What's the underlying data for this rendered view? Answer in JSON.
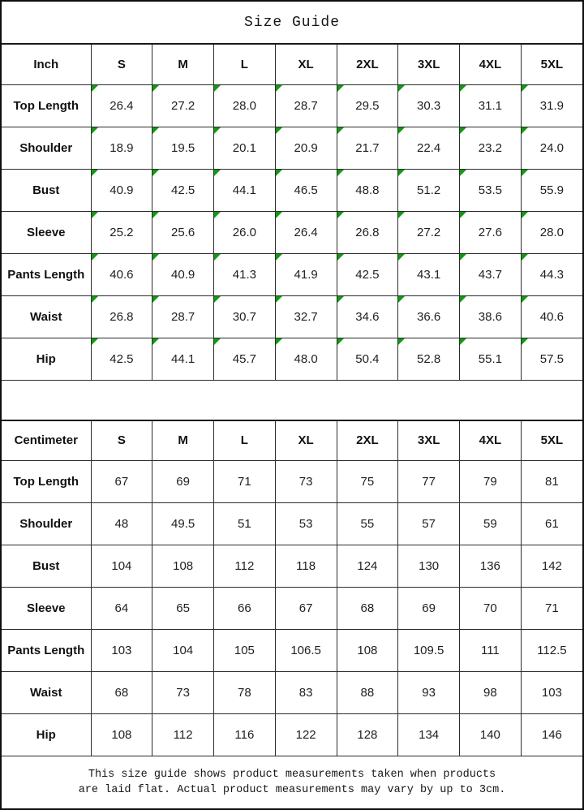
{
  "title": "Size Guide",
  "colors": {
    "indicator_green": "#119a11",
    "border": "#2c2c2c",
    "outer_border": "#0e0e0e",
    "background": "#ffffff"
  },
  "tables": [
    {
      "unit_label": "Inch",
      "columns": [
        "S",
        "M",
        "L",
        "XL",
        "2XL",
        "3XL",
        "4XL",
        "5XL"
      ],
      "has_corner_flags": true,
      "rows": [
        {
          "label": "Top Length",
          "values": [
            "26.4",
            "27.2",
            "28.0",
            "28.7",
            "29.5",
            "30.3",
            "31.1",
            "31.9"
          ]
        },
        {
          "label": "Shoulder",
          "values": [
            "18.9",
            "19.5",
            "20.1",
            "20.9",
            "21.7",
            "22.4",
            "23.2",
            "24.0"
          ]
        },
        {
          "label": "Bust",
          "values": [
            "40.9",
            "42.5",
            "44.1",
            "46.5",
            "48.8",
            "51.2",
            "53.5",
            "55.9"
          ]
        },
        {
          "label": "Sleeve",
          "values": [
            "25.2",
            "25.6",
            "26.0",
            "26.4",
            "26.8",
            "27.2",
            "27.6",
            "28.0"
          ]
        },
        {
          "label": "Pants Length",
          "values": [
            "40.6",
            "40.9",
            "41.3",
            "41.9",
            "42.5",
            "43.1",
            "43.7",
            "44.3"
          ]
        },
        {
          "label": "Waist",
          "values": [
            "26.8",
            "28.7",
            "30.7",
            "32.7",
            "34.6",
            "36.6",
            "38.6",
            "40.6"
          ]
        },
        {
          "label": "Hip",
          "values": [
            "42.5",
            "44.1",
            "45.7",
            "48.0",
            "50.4",
            "52.8",
            "55.1",
            "57.5"
          ]
        }
      ]
    },
    {
      "unit_label": "Centimeter",
      "columns": [
        "S",
        "M",
        "L",
        "XL",
        "2XL",
        "3XL",
        "4XL",
        "5XL"
      ],
      "has_corner_flags": false,
      "rows": [
        {
          "label": "Top Length",
          "values": [
            "67",
            "69",
            "71",
            "73",
            "75",
            "77",
            "79",
            "81"
          ]
        },
        {
          "label": "Shoulder",
          "values": [
            "48",
            "49.5",
            "51",
            "53",
            "55",
            "57",
            "59",
            "61"
          ]
        },
        {
          "label": "Bust",
          "values": [
            "104",
            "108",
            "112",
            "118",
            "124",
            "130",
            "136",
            "142"
          ]
        },
        {
          "label": "Sleeve",
          "values": [
            "64",
            "65",
            "66",
            "67",
            "68",
            "69",
            "70",
            "71"
          ]
        },
        {
          "label": "Pants Length",
          "values": [
            "103",
            "104",
            "105",
            "106.5",
            "108",
            "109.5",
            "111",
            "112.5"
          ]
        },
        {
          "label": "Waist",
          "values": [
            "68",
            "73",
            "78",
            "83",
            "88",
            "93",
            "98",
            "103"
          ]
        },
        {
          "label": "Hip",
          "values": [
            "108",
            "112",
            "116",
            "122",
            "128",
            "134",
            "140",
            "146"
          ]
        }
      ]
    }
  ],
  "footer_note": {
    "line1": "This size guide shows product measurements taken when products",
    "line2": "are laid flat. Actual product measurements may vary by up to 3cm."
  }
}
